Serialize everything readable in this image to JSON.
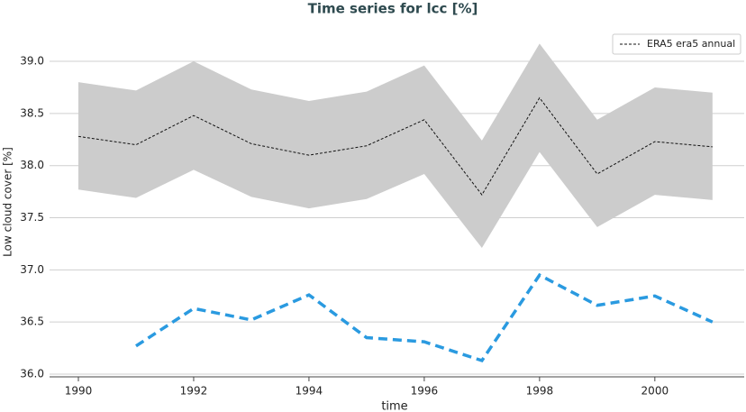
{
  "chart_data": {
    "type": "line",
    "title": "Time series for lcc [%]",
    "xlabel": "time",
    "ylabel": "Low cloud cover [%]",
    "x": [
      1990,
      1991,
      1992,
      1993,
      1994,
      1995,
      1996,
      1997,
      1998,
      1999,
      2000,
      2001
    ],
    "series": [
      {
        "name": "ERA5 era5 annual",
        "color": "#111111",
        "dash": "3,2",
        "width": 1,
        "values": [
          38.28,
          38.2,
          38.48,
          38.21,
          38.1,
          38.19,
          38.44,
          37.72,
          38.65,
          37.92,
          38.23,
          38.18
        ]
      },
      {
        "color": "#2a9ae0",
        "dash": "10,6",
        "width": 3.5,
        "values": [
          null,
          36.27,
          36.63,
          36.52,
          36.76,
          36.35,
          36.31,
          36.13,
          36.95,
          36.66,
          36.75,
          36.5
        ]
      }
    ],
    "band": {
      "color": "#cccccc",
      "upper": [
        38.8,
        38.72,
        39.0,
        38.73,
        38.62,
        38.71,
        38.96,
        38.24,
        39.17,
        38.44,
        38.75,
        38.7
      ],
      "lower": [
        37.77,
        37.69,
        37.96,
        37.7,
        37.59,
        37.68,
        37.92,
        37.21,
        38.13,
        37.41,
        37.72,
        37.67
      ]
    },
    "xlim": [
      1989.5,
      2001.55
    ],
    "xticks": [
      1990,
      1992,
      1994,
      1996,
      1998,
      2000
    ],
    "ylim": [
      35.974,
      39.303
    ],
    "yticks": [
      {
        "value": 36,
        "label": "36.0"
      },
      {
        "value": 36.5,
        "label": "36.5"
      },
      {
        "value": 37,
        "label": "37.0"
      },
      {
        "value": 37.5,
        "label": "37.5"
      },
      {
        "value": 38,
        "label": "38.0"
      },
      {
        "value": 38.5,
        "label": "38.5"
      },
      {
        "value": 39,
        "label": "39.0"
      }
    ],
    "grid": true,
    "legend": "upper right"
  }
}
